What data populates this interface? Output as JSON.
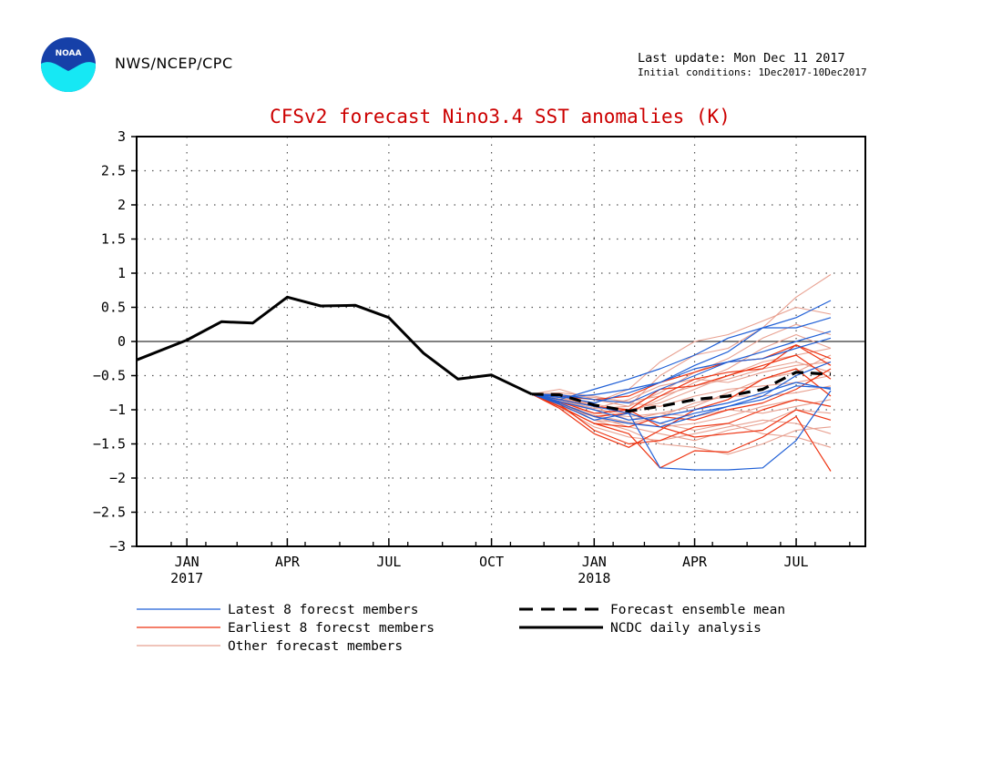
{
  "header": {
    "agency": "NWS/NCEP/CPC",
    "last_update": "Last update: Mon Dec 11 2017",
    "initial_conditions": "Initial conditions: 1Dec2017-10Dec2017",
    "logo_text": "NOAA"
  },
  "colors": {
    "title": "#cc0000",
    "latest": "#1f5fd6",
    "earliest": "#ee3311",
    "other": "#e8a090",
    "mean": "#000000",
    "analysis": "#000000",
    "logo_top": "#1640a8",
    "logo_bottom": "#16e8f4"
  },
  "legend": {
    "latest": "Latest 8 forecst members",
    "earliest": "Earliest 8 forecst members",
    "other": "Other forecast members",
    "mean": "Forecast ensemble mean",
    "analysis": "NCDC daily analysis"
  },
  "chart_data": {
    "type": "line",
    "title": "CFSv2 forecast Nino3.4 SST anomalies (K)",
    "xlabel": "",
    "ylabel": "",
    "ylim": [
      -3,
      3
    ],
    "xlim": [
      "2016-12-01",
      "2018-09-15"
    ],
    "yticks": [
      "3",
      "2.5",
      "2",
      "1.5",
      "1",
      "0.5",
      "0",
      "−0.5",
      "−1",
      "−1.5",
      "−2",
      "−2.5",
      "−3"
    ],
    "ytick_values": [
      3,
      2.5,
      2,
      1.5,
      1,
      0.5,
      0,
      -0.5,
      -1,
      -1.5,
      -2,
      -2.5,
      -3
    ],
    "xticks": [
      {
        "date": "2017-01-15",
        "label": "JAN",
        "year": "2017"
      },
      {
        "date": "2017-04-15",
        "label": "APR",
        "year": ""
      },
      {
        "date": "2017-07-15",
        "label": "JUL",
        "year": ""
      },
      {
        "date": "2017-10-15",
        "label": "OCT",
        "year": ""
      },
      {
        "date": "2018-01-15",
        "label": "JAN",
        "year": "2018"
      },
      {
        "date": "2018-04-15",
        "label": "APR",
        "year": ""
      },
      {
        "date": "2018-07-15",
        "label": "JUL",
        "year": ""
      }
    ],
    "grid": true,
    "zero_line": true,
    "forecast_dates": [
      "2017-11-20",
      "2017-12-15",
      "2018-01-15",
      "2018-02-15",
      "2018-03-15",
      "2018-04-15",
      "2018-05-15",
      "2018-06-15",
      "2018-07-15",
      "2018-08-15"
    ],
    "series": [
      {
        "name": "NCDC daily analysis",
        "group": "analysis",
        "x": [
          "2016-12-01",
          "2017-01-15",
          "2017-02-15",
          "2017-03-15",
          "2017-04-15",
          "2017-05-15",
          "2017-06-15",
          "2017-07-15",
          "2017-08-15",
          "2017-09-15",
          "2017-10-15",
          "2017-11-20"
        ],
        "values": [
          -0.27,
          0.02,
          0.29,
          0.27,
          0.65,
          0.52,
          0.53,
          0.35,
          -0.17,
          -0.55,
          -0.49,
          -0.77
        ]
      },
      {
        "name": "Forecast ensemble mean",
        "group": "mean",
        "values": [
          -0.77,
          -0.78,
          -0.93,
          -1.02,
          -0.95,
          -0.85,
          -0.8,
          -0.7,
          -0.45,
          -0.48
        ]
      },
      {
        "group": "latest",
        "values": [
          -0.77,
          -0.92,
          -1.15,
          -1.05,
          -1.85,
          -1.88,
          -1.88,
          -1.85,
          -1.45,
          -0.72
        ]
      },
      {
        "group": "latest",
        "values": [
          -0.77,
          -0.85,
          -0.7,
          -0.55,
          -0.4,
          -0.2,
          0.05,
          0.2,
          0.35,
          0.6
        ]
      },
      {
        "group": "latest",
        "values": [
          -0.77,
          -0.8,
          -0.9,
          -0.75,
          -0.6,
          -0.35,
          -0.15,
          0.2,
          0.2,
          0.35
        ]
      },
      {
        "group": "latest",
        "values": [
          -0.77,
          -0.78,
          -0.85,
          -0.9,
          -0.7,
          -0.5,
          -0.3,
          -0.15,
          0.0,
          0.15
        ]
      },
      {
        "group": "latest",
        "values": [
          -0.77,
          -0.88,
          -1.0,
          -1.15,
          -1.1,
          -1.0,
          -0.9,
          -0.75,
          -0.6,
          -0.7
        ]
      },
      {
        "group": "latest",
        "values": [
          -0.77,
          -0.85,
          -0.95,
          -1.05,
          -1.2,
          -1.05,
          -0.95,
          -0.85,
          -0.65,
          -0.68
        ]
      },
      {
        "group": "latest",
        "values": [
          -0.77,
          -0.9,
          -1.1,
          -1.2,
          -1.25,
          -1.1,
          -0.95,
          -0.8,
          -0.5,
          -0.3
        ]
      },
      {
        "group": "latest",
        "values": [
          -0.77,
          -0.82,
          -0.78,
          -0.7,
          -0.6,
          -0.4,
          -0.3,
          -0.25,
          -0.1,
          0.05
        ]
      },
      {
        "group": "earliest",
        "values": [
          -0.77,
          -0.95,
          -1.2,
          -1.35,
          -1.85,
          -1.6,
          -1.62,
          -1.4,
          -1.1,
          -1.9
        ]
      },
      {
        "group": "earliest",
        "values": [
          -0.77,
          -0.9,
          -1.1,
          -1.05,
          -0.8,
          -0.55,
          -0.45,
          -0.4,
          -0.05,
          -0.35
        ]
      },
      {
        "group": "earliest",
        "values": [
          -0.77,
          -0.85,
          -0.95,
          -1.0,
          -1.25,
          -1.4,
          -1.35,
          -1.3,
          -1.0,
          -1.15
        ]
      },
      {
        "group": "earliest",
        "values": [
          -0.77,
          -0.92,
          -1.3,
          -1.5,
          -1.45,
          -1.25,
          -1.2,
          -1.0,
          -0.85,
          -0.95
        ]
      },
      {
        "group": "earliest",
        "values": [
          -0.77,
          -0.88,
          -1.05,
          -1.0,
          -0.7,
          -0.65,
          -0.5,
          -0.35,
          -0.2,
          -0.55
        ]
      },
      {
        "group": "earliest",
        "values": [
          -0.77,
          -0.95,
          -1.2,
          -1.25,
          -1.1,
          -1.15,
          -1.0,
          -0.9,
          -0.7,
          -0.4
        ]
      },
      {
        "group": "earliest",
        "values": [
          -0.77,
          -0.8,
          -0.85,
          -0.8,
          -0.6,
          -0.45,
          -0.3,
          -0.25,
          -0.05,
          -0.25
        ]
      },
      {
        "group": "earliest",
        "values": [
          -0.77,
          -0.98,
          -1.35,
          -1.55,
          -1.3,
          -1.0,
          -0.85,
          -0.55,
          -0.4,
          -0.8
        ]
      },
      {
        "group": "other",
        "values": [
          -0.77,
          -0.7,
          -0.85,
          -0.95,
          -0.5,
          -0.2,
          -0.1,
          0.2,
          0.65,
          0.98
        ]
      },
      {
        "group": "other",
        "values": [
          -0.77,
          -0.85,
          -0.9,
          -0.7,
          -0.3,
          0.0,
          0.1,
          0.3,
          0.5,
          0.4
        ]
      },
      {
        "group": "other",
        "values": [
          -0.77,
          -0.9,
          -1.0,
          -1.05,
          -0.85,
          -0.6,
          -0.4,
          -0.1,
          0.1,
          -0.1
        ]
      },
      {
        "group": "other",
        "values": [
          -0.77,
          -0.8,
          -0.95,
          -1.15,
          -1.05,
          -0.95,
          -0.75,
          -0.55,
          -0.45,
          -0.2
        ]
      },
      {
        "group": "other",
        "values": [
          -0.77,
          -0.95,
          -1.1,
          -1.25,
          -1.35,
          -1.45,
          -1.3,
          -1.2,
          -1.0,
          -1.05
        ]
      },
      {
        "group": "other",
        "values": [
          -0.77,
          -0.88,
          -1.15,
          -1.3,
          -1.5,
          -1.55,
          -1.65,
          -1.5,
          -1.3,
          -1.25
        ]
      },
      {
        "group": "other",
        "values": [
          -0.77,
          -0.75,
          -0.8,
          -0.9,
          -0.95,
          -0.8,
          -0.7,
          -0.65,
          -0.6,
          -0.5
        ]
      },
      {
        "group": "other",
        "values": [
          -0.77,
          -0.92,
          -1.05,
          -1.1,
          -1.05,
          -1.1,
          -1.0,
          -1.05,
          -0.95,
          -0.85
        ]
      },
      {
        "group": "other",
        "values": [
          -0.77,
          -0.82,
          -0.95,
          -1.05,
          -1.2,
          -1.3,
          -1.2,
          -1.35,
          -1.4,
          -1.55
        ]
      },
      {
        "group": "other",
        "values": [
          -0.77,
          -0.86,
          -0.98,
          -0.85,
          -0.65,
          -0.55,
          -0.6,
          -0.45,
          -0.35,
          -0.3
        ]
      },
      {
        "group": "other",
        "values": [
          -0.77,
          -0.9,
          -1.15,
          -1.2,
          -1.1,
          -0.9,
          -0.8,
          -0.8,
          -0.75,
          -0.65
        ]
      },
      {
        "group": "other",
        "values": [
          -0.77,
          -0.84,
          -0.92,
          -1.0,
          -0.9,
          -0.7,
          -0.5,
          -0.3,
          -0.2,
          -0.1
        ]
      },
      {
        "group": "other",
        "values": [
          -0.77,
          -0.96,
          -1.25,
          -1.4,
          -1.45,
          -1.35,
          -1.25,
          -1.15,
          -1.2,
          -1.35
        ]
      },
      {
        "group": "other",
        "values": [
          -0.77,
          -0.78,
          -0.82,
          -0.88,
          -0.8,
          -0.65,
          -0.55,
          -0.4,
          -0.3,
          -0.45
        ]
      },
      {
        "group": "other",
        "values": [
          -0.77,
          -0.88,
          -0.98,
          -0.95,
          -0.75,
          -0.45,
          -0.25,
          0.05,
          0.25,
          0.1
        ]
      },
      {
        "group": "other",
        "values": [
          -0.77,
          -0.93,
          -1.08,
          -1.18,
          -1.25,
          -1.2,
          -1.1,
          -0.95,
          -0.85,
          -0.95
        ]
      }
    ]
  }
}
